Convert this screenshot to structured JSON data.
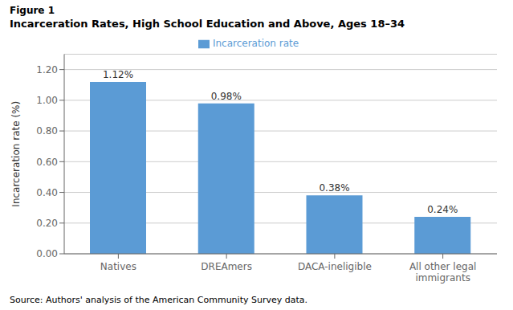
{
  "chart_data": {
    "type": "bar",
    "subtitle": "Figure 1",
    "title": "Incarceration Rates, High School Education and Above, Ages 18–34",
    "categories": [
      "Natives",
      "DREAmers",
      "DACA-ineligible",
      "All other legal\nimmigrants"
    ],
    "series": [
      {
        "name": "Incarceration rate",
        "color": "#5B9BD5",
        "values": [
          1.12,
          0.98,
          0.38,
          0.24
        ],
        "value_labels": [
          "1.12%",
          "0.98%",
          "0.38%",
          "0.24%"
        ]
      }
    ],
    "data_labels": true,
    "ylabel": "Incarceration rate (%)",
    "ylim": [
      0,
      1.3
    ],
    "yticks": [
      {
        "value": 0,
        "label": "0.00"
      },
      {
        "value": 0.2,
        "label": "0.20"
      },
      {
        "value": 0.4,
        "label": "0.40"
      },
      {
        "value": 0.6,
        "label": "0.60"
      },
      {
        "value": 0.8,
        "label": "0.80"
      },
      {
        "value": 1,
        "label": "1.00"
      },
      {
        "value": 1.2,
        "label": "1.20"
      }
    ],
    "grid": true,
    "legend": "top",
    "annotations": [
      "Source: Authors' analysis of the American Community Survey data."
    ]
  }
}
